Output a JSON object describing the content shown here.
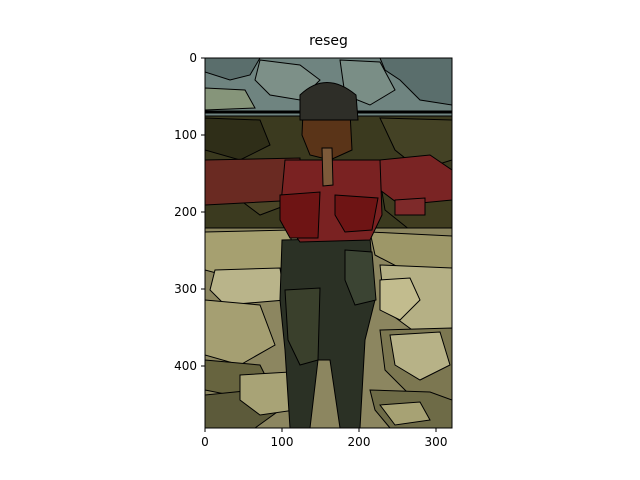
{
  "figure": {
    "title": "reseg"
  },
  "axes": {
    "x_ticks": [
      {
        "value": 0,
        "label": "0"
      },
      {
        "value": 100,
        "label": "100"
      },
      {
        "value": 200,
        "label": "200"
      },
      {
        "value": 300,
        "label": "300"
      }
    ],
    "y_ticks": [
      {
        "value": 0,
        "label": "0"
      },
      {
        "value": 100,
        "label": "100"
      },
      {
        "value": 200,
        "label": "200"
      },
      {
        "value": 300,
        "label": "300"
      },
      {
        "value": 400,
        "label": "400"
      }
    ],
    "x_range": [
      0,
      320
    ],
    "y_range": [
      0,
      480
    ],
    "y_direction": "top-to-bottom"
  },
  "image": {
    "description_colors": {
      "sky": "#6f8480",
      "sky_dark": "#5a6e6c",
      "trees": "#3b3a1f",
      "shirt_red": "#7a2222",
      "shirt_dark_red": "#6e1414",
      "skin": "#5a3418",
      "hair": "#2e2e28",
      "pants": "#2b3125",
      "ground_light": "#b9b48a",
      "ground_mid": "#8c8660",
      "ground_dark": "#5c5a3a",
      "outline": "#000000"
    }
  }
}
